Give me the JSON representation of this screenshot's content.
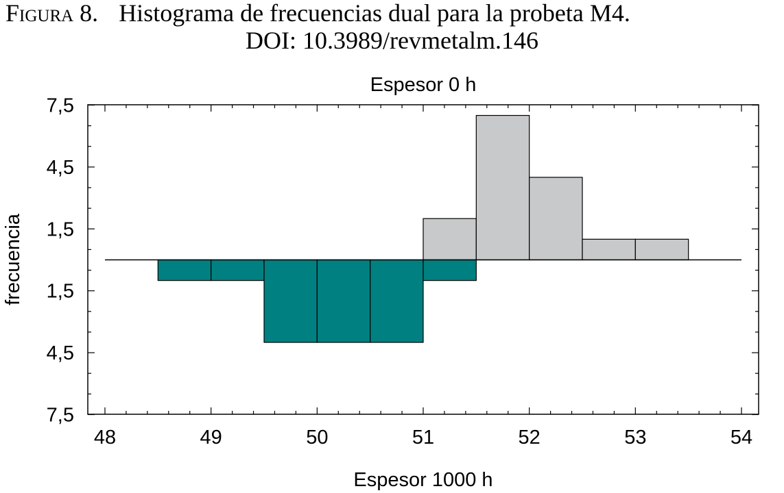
{
  "caption": {
    "label": "Figura 8.",
    "text": "Histograma de frecuencias dual para la probeta M4.",
    "doi": "DOI: 10.3989/revmetalm.146"
  },
  "chart_data": {
    "type": "bar",
    "subtype": "dual-histogram",
    "title": "",
    "top_series_label": "Espesor 0 h",
    "xlabel": "Espesor 1000 h",
    "ylabel": "frecuencia",
    "xlim": [
      48,
      54
    ],
    "x_ticks": [
      "48",
      "49",
      "50",
      "51",
      "52",
      "53",
      "54"
    ],
    "y_range": [
      -7.5,
      7.5
    ],
    "y_ticks": [
      "7,5",
      "4,5",
      "1,5",
      "1,5",
      "4,5",
      "7,5"
    ],
    "grid": false,
    "series": [
      {
        "name": "Espesor 0 h",
        "position": "upper",
        "color": "#C8C9CB",
        "bins": [
          {
            "from": 51.0,
            "to": 51.5,
            "value": 2
          },
          {
            "from": 51.5,
            "to": 52.0,
            "value": 7
          },
          {
            "from": 52.0,
            "to": 52.5,
            "value": 4
          },
          {
            "from": 52.5,
            "to": 53.0,
            "value": 1
          },
          {
            "from": 53.0,
            "to": 53.5,
            "value": 1
          }
        ]
      },
      {
        "name": "Espesor 1000 h",
        "position": "lower",
        "color": "#008080",
        "bins": [
          {
            "from": 48.5,
            "to": 49.0,
            "value": 1
          },
          {
            "from": 49.0,
            "to": 49.5,
            "value": 1
          },
          {
            "from": 49.5,
            "to": 50.0,
            "value": 4
          },
          {
            "from": 50.0,
            "to": 50.5,
            "value": 4
          },
          {
            "from": 50.5,
            "to": 51.0,
            "value": 4
          },
          {
            "from": 51.0,
            "to": 51.5,
            "value": 1
          }
        ]
      }
    ]
  }
}
